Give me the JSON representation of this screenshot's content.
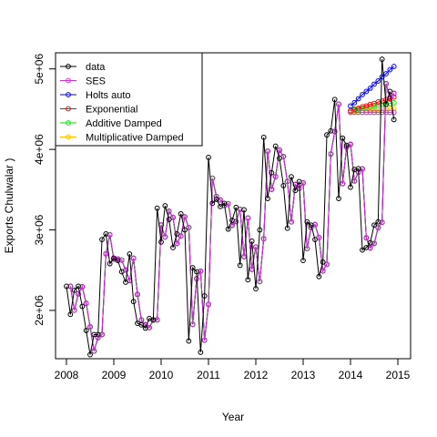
{
  "chart_data": {
    "type": "line",
    "title": "",
    "xlabel": "Year",
    "ylabel": "Exports Chulwalar )",
    "xlim": [
      2008,
      2015
    ],
    "ylim": [
      1400000,
      5200000
    ],
    "x_ticks": [
      2008,
      2009,
      2010,
      2011,
      2012,
      2013,
      2014,
      2015
    ],
    "x_tick_labels": [
      "2008",
      "2009",
      "2010",
      "2011",
      "2012",
      "2013",
      "2014",
      "2015"
    ],
    "y_ticks": [
      2000000,
      3000000,
      4000000,
      5000000
    ],
    "y_tick_labels": [
      "2e+06",
      "3e+06",
      "4e+06",
      "5e+06"
    ],
    "grid": false,
    "legend_position": "top-left",
    "series": [
      {
        "name": "data",
        "color": "#000000",
        "x_start": 2008,
        "step": 0.0833333,
        "values": [
          2300000,
          1950000,
          2250000,
          2300000,
          2050000,
          1750000,
          1450000,
          1700000,
          1700000,
          2880000,
          2950000,
          2580000,
          2650000,
          2620000,
          2480000,
          2350000,
          2700000,
          2110000,
          1840000,
          1820000,
          1780000,
          1900000,
          1880000,
          3270000,
          2850000,
          3300000,
          3130000,
          2780000,
          2950000,
          3200000,
          3000000,
          1620000,
          2530000,
          2480000,
          1480000,
          2180000,
          3900000,
          3330000,
          3380000,
          3290000,
          3330000,
          3010000,
          3120000,
          3280000,
          2560000,
          3250000,
          2380000,
          2860000,
          2270000,
          3000000,
          4150000,
          3390000,
          3710000,
          4040000,
          3890000,
          3550000,
          3020000,
          3660000,
          3490000,
          3600000,
          2620000,
          3100000,
          3060000,
          2880000,
          2420000,
          2600000,
          4180000,
          4230000,
          4620000,
          3390000,
          4140000,
          4050000,
          3530000,
          3750000,
          3760000,
          2750000,
          2780000,
          2840000,
          3060000,
          3100000,
          5120000,
          4560000,
          4720000,
          4370000
        ]
      },
      {
        "name": "SES",
        "color": "#cc33cc",
        "forecast_x_start": 2014,
        "forecast_values": [
          4460000,
          4460000,
          4460000,
          4460000,
          4460000,
          4460000,
          4460000,
          4460000,
          4460000,
          4460000,
          4460000,
          4460000
        ]
      },
      {
        "name": "Holts auto",
        "color": "#0000ff",
        "forecast_x_start": 2014,
        "forecast_values": [
          4540000,
          4580000,
          4630000,
          4680000,
          4720000,
          4760000,
          4810000,
          4850000,
          4900000,
          4940000,
          4990000,
          5030000
        ]
      },
      {
        "name": "Exponential",
        "color": "#ff0000",
        "forecast_x_start": 2014,
        "forecast_values": [
          4480000,
          4500000,
          4510000,
          4530000,
          4540000,
          4560000,
          4570000,
          4590000,
          4600000,
          4620000,
          4630000,
          4650000
        ]
      },
      {
        "name": "Additive Damped",
        "color": "#00ee00",
        "forecast_x_start": 2014,
        "forecast_values": [
          4480000,
          4490000,
          4500000,
          4510000,
          4520000,
          4530000,
          4540000,
          4550000,
          4555000,
          4560000,
          4570000,
          4580000
        ]
      },
      {
        "name": "Multiplicative Damped",
        "color": "#ffbb00",
        "forecast_x_start": 2014,
        "forecast_values": [
          4470000,
          4475000,
          4480000,
          4485000,
          4490000,
          4495000,
          4500000,
          4500000,
          4505000,
          4505000,
          4510000,
          4510000
        ]
      }
    ]
  }
}
